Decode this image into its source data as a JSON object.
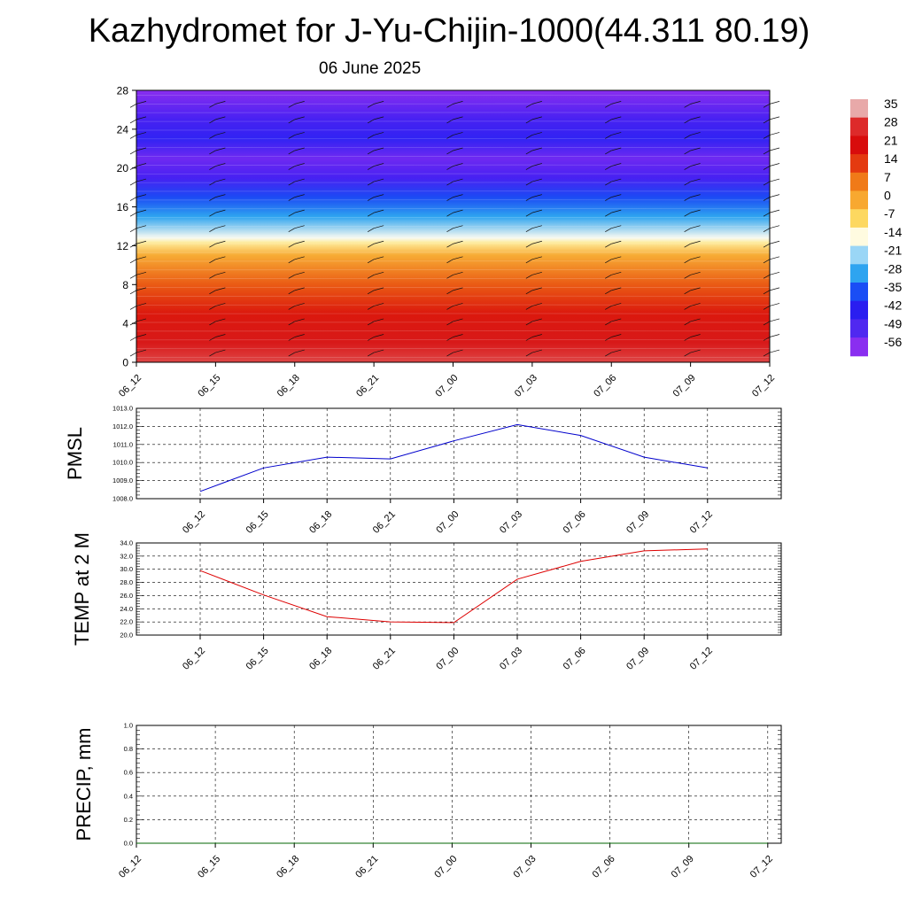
{
  "title": "Kazhydromet for J-Yu-Chijin-1000(44.311 80.19)",
  "subtitle": "06 June 2025",
  "colorbar": {
    "labels": [
      "35",
      "28",
      "21",
      "14",
      "7",
      "0",
      "-7",
      "-14",
      "-21",
      "-28",
      "-35",
      "-42",
      "-49",
      "-56"
    ],
    "colors": [
      "#e8a9a9",
      "#dd2a2a",
      "#d80c0c",
      "#e43a10",
      "#f07a18",
      "#f8a830",
      "#fdd860",
      "#fffbe0",
      "#9ad6f6",
      "#2ea4f0",
      "#1a4ef5",
      "#2a1ef0",
      "#5028f0",
      "#8a2ef0"
    ]
  },
  "chart_data": [
    {
      "type": "heatmap",
      "name": "temperature_profile_vs_time",
      "x_ticks": [
        "06_12",
        "06_15",
        "06_18",
        "06_21",
        "07_00",
        "07_03",
        "07_06",
        "07_09",
        "07_12"
      ],
      "y_ticks": [
        "0",
        "4",
        "8",
        "12",
        "16",
        "20",
        "24",
        "28"
      ],
      "ylim": [
        0,
        28
      ],
      "color_range": [
        -56,
        35
      ],
      "vertical_profile": [
        {
          "level": 0,
          "value": 33
        },
        {
          "level": 2,
          "value": 28
        },
        {
          "level": 5,
          "value": 22
        },
        {
          "level": 8,
          "value": 12
        },
        {
          "level": 11,
          "value": 1
        },
        {
          "level": 12.3,
          "value": -8
        },
        {
          "level": 12.8,
          "value": -14
        },
        {
          "level": 15,
          "value": -30
        },
        {
          "level": 17,
          "value": -42
        },
        {
          "level": 19,
          "value": -53
        },
        {
          "level": 21,
          "value": -56
        },
        {
          "level": 23,
          "value": -50
        },
        {
          "level": 25,
          "value": -53
        },
        {
          "level": 28,
          "value": -58
        }
      ]
    },
    {
      "type": "line",
      "ylabel": "PMSL",
      "x": [
        "06_12",
        "06_15",
        "06_18",
        "06_21",
        "07_00",
        "07_03",
        "07_06",
        "07_09",
        "07_12"
      ],
      "values": [
        1008.4,
        1009.7,
        1010.3,
        1010.2,
        1011.2,
        1012.1,
        1011.5,
        1010.3,
        1009.7
      ],
      "ylim": [
        1008.0,
        1013.0
      ],
      "y_ticks": [
        "1008.0",
        "1009.0",
        "1010.0",
        "1011.0",
        "1012.0",
        "1013.0"
      ],
      "color": "#0000cc",
      "grid": true
    },
    {
      "type": "line",
      "ylabel": "TEMP at 2 M",
      "x": [
        "06_12",
        "06_15",
        "06_18",
        "06_21",
        "07_00",
        "07_03",
        "07_06",
        "07_09",
        "07_12"
      ],
      "values": [
        29.8,
        26.1,
        22.8,
        22.0,
        21.9,
        28.5,
        31.2,
        32.8,
        33.1
      ],
      "ylim": [
        20.0,
        34.0
      ],
      "y_ticks": [
        "20.0",
        "22.0",
        "24.0",
        "26.0",
        "28.0",
        "30.0",
        "32.0",
        "34.0"
      ],
      "color": "#dd0000",
      "grid": true
    },
    {
      "type": "line",
      "ylabel": "PRECIP, mm",
      "x": [
        "06_12",
        "06_15",
        "06_18",
        "06_21",
        "07_00",
        "07_03",
        "07_06",
        "07_09",
        "07_12"
      ],
      "values": [
        0,
        0,
        0,
        0,
        0,
        0,
        0,
        0,
        0
      ],
      "ylim": [
        0.0,
        1.0
      ],
      "y_ticks": [
        "0.0",
        "0.2",
        "0.4",
        "0.6",
        "0.8",
        "1.0"
      ],
      "color": "#006400",
      "grid": true
    }
  ]
}
